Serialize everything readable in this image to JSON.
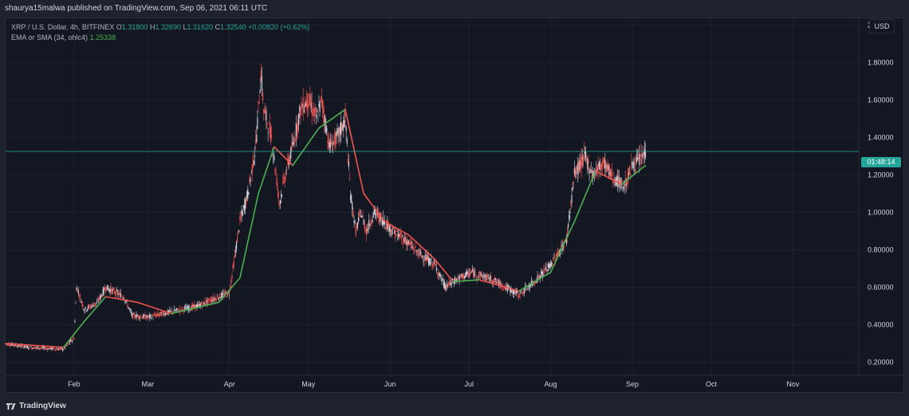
{
  "header": {
    "publisher_line": "shaurya15malwa published on TradingView.com, Sep 06, 2021 06:11 UTC"
  },
  "legend": {
    "symbol": "XRP / U.S. Dollar, 4h, BITFINEX",
    "o_label": "O",
    "o_value": "1.31800",
    "h_label": "H",
    "h_value": "1.32690",
    "l_label": "L",
    "l_value": "1.31620",
    "c_label": "C",
    "c_value": "1.32540",
    "change": "+0.00820 (+0.62%)",
    "indicator_label": "EMA or SMA (34, ohlc4)",
    "indicator_value": "1.25338"
  },
  "axis": {
    "currency": "USD",
    "countdown": "01:48:14"
  },
  "footer": {
    "brand": "TradingView"
  },
  "colors": {
    "background": "#131722",
    "up": "#26a69a",
    "down": "#ef5350",
    "candle_up_light": "#d1d4dc",
    "ma_up": "#4caf50",
    "ma_down": "#ef5350",
    "grid": "#1e222d",
    "price_line": "#26a69a"
  },
  "chart_data": {
    "type": "line",
    "title": "XRP / U.S. Dollar, 4h, BITFINEX",
    "y_ticks": [
      "2.00000",
      "1.80000",
      "1.60000",
      "1.40000",
      "1.20000",
      "1.00000",
      "0.80000",
      "0.60000",
      "0.40000",
      "0.20000"
    ],
    "ylim": [
      0.13,
      2.04
    ],
    "x_ticks": [
      "Feb",
      "Mar",
      "Apr",
      "May",
      "Jun",
      "Jul",
      "Aug",
      "Sep",
      "Oct",
      "Nov"
    ],
    "x_tick_dates": [
      "2021-02-01",
      "2021-03-01",
      "2021-04-01",
      "2021-05-01",
      "2021-06-01",
      "2021-07-01",
      "2021-08-01",
      "2021-09-01",
      "2021-10-01",
      "2021-11-01"
    ],
    "x_range_dates": [
      "2021-01-06",
      "2021-11-26"
    ],
    "last_price": 1.3254,
    "series": [
      {
        "name": "XRP / U.S. Dollar",
        "x": [
          "2021-01-06",
          "2021-01-15",
          "2021-01-28",
          "2021-02-01",
          "2021-02-02",
          "2021-02-05",
          "2021-02-10",
          "2021-02-13",
          "2021-02-20",
          "2021-02-23",
          "2021-03-01",
          "2021-03-10",
          "2021-03-20",
          "2021-03-28",
          "2021-04-01",
          "2021-04-05",
          "2021-04-08",
          "2021-04-11",
          "2021-04-13",
          "2021-04-14",
          "2021-04-17",
          "2021-04-20",
          "2021-04-23",
          "2021-04-25",
          "2021-04-28",
          "2021-05-01",
          "2021-05-04",
          "2021-05-06",
          "2021-05-09",
          "2021-05-12",
          "2021-05-15",
          "2021-05-17",
          "2021-05-19",
          "2021-05-21",
          "2021-05-23",
          "2021-05-26",
          "2021-05-30",
          "2021-06-02",
          "2021-06-07",
          "2021-06-12",
          "2021-06-18",
          "2021-06-22",
          "2021-06-26",
          "2021-07-02",
          "2021-07-10",
          "2021-07-20",
          "2021-07-25",
          "2021-08-01",
          "2021-08-07",
          "2021-08-10",
          "2021-08-14",
          "2021-08-17",
          "2021-08-21",
          "2021-08-25",
          "2021-08-29",
          "2021-09-01",
          "2021-09-04",
          "2021-09-06"
        ],
        "values": [
          0.3,
          0.28,
          0.27,
          0.33,
          0.6,
          0.48,
          0.52,
          0.6,
          0.55,
          0.45,
          0.44,
          0.47,
          0.5,
          0.55,
          0.57,
          0.95,
          1.1,
          1.35,
          1.75,
          1.55,
          1.4,
          1.05,
          1.25,
          1.35,
          1.55,
          1.6,
          1.5,
          1.6,
          1.35,
          1.4,
          1.5,
          1.1,
          0.9,
          1.0,
          0.9,
          1.0,
          0.95,
          0.9,
          0.85,
          0.78,
          0.72,
          0.6,
          0.64,
          0.68,
          0.64,
          0.56,
          0.62,
          0.72,
          0.85,
          1.2,
          1.3,
          1.2,
          1.27,
          1.18,
          1.14,
          1.25,
          1.28,
          1.325
        ]
      },
      {
        "name": "EMA or SMA (34, ohlc4)",
        "x": [
          "2021-01-06",
          "2021-01-28",
          "2021-02-05",
          "2021-02-13",
          "2021-02-25",
          "2021-03-10",
          "2021-03-28",
          "2021-04-05",
          "2021-04-12",
          "2021-04-18",
          "2021-04-25",
          "2021-05-05",
          "2021-05-15",
          "2021-05-22",
          "2021-05-30",
          "2021-06-08",
          "2021-06-18",
          "2021-06-25",
          "2021-07-05",
          "2021-07-20",
          "2021-08-01",
          "2021-08-10",
          "2021-08-18",
          "2021-08-28",
          "2021-09-06"
        ],
        "values": [
          0.3,
          0.28,
          0.42,
          0.55,
          0.52,
          0.46,
          0.52,
          0.65,
          1.1,
          1.35,
          1.25,
          1.45,
          1.55,
          1.1,
          0.95,
          0.88,
          0.75,
          0.63,
          0.64,
          0.58,
          0.68,
          0.95,
          1.22,
          1.15,
          1.25
        ]
      }
    ]
  }
}
